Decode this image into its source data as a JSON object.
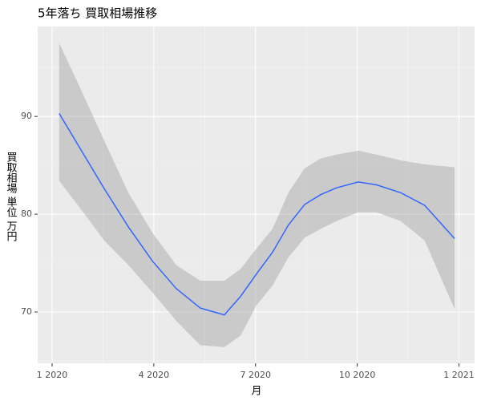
{
  "chart_data": {
    "type": "line",
    "title": "5年落ち 買取相場推移",
    "x_label": "月",
    "y_label": "買取相場 単位 万円",
    "x": [
      1.21,
      1.83,
      2.54,
      3.25,
      3.96,
      4.66,
      5.37,
      6.08,
      6.56,
      7.03,
      7.5,
      7.97,
      8.45,
      8.92,
      9.39,
      10.03,
      10.57,
      11.28,
      11.99,
      12.87
    ],
    "series": [
      {
        "color": "#3366ff",
        "band_color": "#999999",
        "values": [
          90.3,
          86.7,
          82.6,
          78.7,
          75.2,
          72.4,
          70.4,
          69.7,
          71.6,
          73.9,
          76.1,
          78.9,
          81.0,
          82.0,
          82.7,
          83.3,
          83.0,
          82.2,
          80.9,
          77.5
        ],
        "upper": [
          97.5,
          92.9,
          87.5,
          82.2,
          78.1,
          74.8,
          73.2,
          73.2,
          74.4,
          76.5,
          78.5,
          82.2,
          84.7,
          85.7,
          86.1,
          86.5,
          86.1,
          85.5,
          85.1,
          84.8
        ],
        "lower": [
          83.4,
          80.6,
          77.3,
          74.8,
          72.0,
          69.1,
          66.6,
          66.4,
          67.6,
          70.7,
          72.7,
          75.6,
          77.6,
          78.5,
          79.3,
          80.2,
          80.2,
          79.3,
          77.3,
          70.3
        ]
      }
    ],
    "xlim": [
      0.575,
      13.46
    ],
    "xticks": [
      {
        "value": 1,
        "label": "1 2020"
      },
      {
        "value": 4,
        "label": "4 2020"
      },
      {
        "value": 7,
        "label": "7 2020"
      },
      {
        "value": 10,
        "label": "10 2020"
      },
      {
        "value": 13,
        "label": "1 2021"
      }
    ],
    "xminor_ticks": [
      2.5,
      5.5,
      8.5,
      11.5
    ],
    "ylim": [
      64.75,
      99.2
    ],
    "yticks": [
      70,
      80,
      90
    ],
    "yminor_ticks": [
      65,
      75,
      85,
      95
    ],
    "grid": true
  }
}
